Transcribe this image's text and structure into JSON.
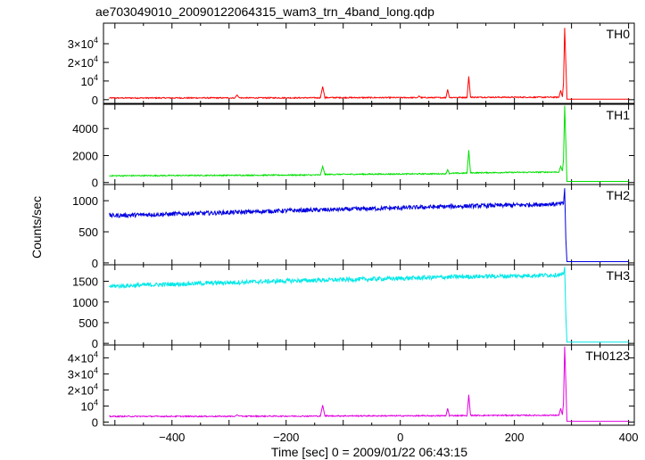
{
  "chart_data": {
    "type": "line",
    "title": "ae703049010_20090122064315_wam3_trn_4band_long.qdp",
    "xlabel": "Time [sec] 0 = 2009/01/22 06:43:15",
    "ylabel": "Counts/sec",
    "xlim": [
      -520,
      410
    ],
    "x_ticks": [
      -400,
      -200,
      0,
      200,
      400
    ],
    "grid": false,
    "panels": [
      {
        "name": "TH0",
        "color": "#ff0000",
        "ylim": [
          -2000,
          41000
        ],
        "y_ticks": [
          {
            "value": 0,
            "mantissa": "0",
            "exp": ""
          },
          {
            "value": 10000,
            "mantissa": "10",
            "exp": "4"
          },
          {
            "value": 20000,
            "mantissa": "2×10",
            "exp": "4"
          },
          {
            "value": 30000,
            "mantissa": "3×10",
            "exp": "4"
          }
        ],
        "series": [
          {
            "x": -510,
            "y": 900
          },
          {
            "x": -290,
            "y": 950
          },
          {
            "x": -286,
            "y": 2500
          },
          {
            "x": -282,
            "y": 950
          },
          {
            "x": -140,
            "y": 1000
          },
          {
            "x": -136,
            "y": 7000
          },
          {
            "x": -132,
            "y": 1100
          },
          {
            "x": 30,
            "y": 1100
          },
          {
            "x": 33,
            "y": 2000
          },
          {
            "x": 36,
            "y": 1100
          },
          {
            "x": 80,
            "y": 1100
          },
          {
            "x": 83,
            "y": 5500
          },
          {
            "x": 86,
            "y": 1200
          },
          {
            "x": 117,
            "y": 1200
          },
          {
            "x": 120,
            "y": 12500
          },
          {
            "x": 123,
            "y": 1300
          },
          {
            "x": 278,
            "y": 1300
          },
          {
            "x": 281,
            "y": 5000
          },
          {
            "x": 284,
            "y": 1500
          },
          {
            "x": 286,
            "y": 9000
          },
          {
            "x": 288,
            "y": 38500
          },
          {
            "x": 290,
            "y": 20000
          },
          {
            "x": 292,
            "y": 300
          },
          {
            "x": 400,
            "y": 300
          }
        ]
      },
      {
        "name": "TH1",
        "color": "#00e000",
        "ylim": [
          -150,
          5800
        ],
        "y_ticks": [
          {
            "value": 0,
            "mantissa": "0",
            "exp": ""
          },
          {
            "value": 2000,
            "mantissa": "2000",
            "exp": ""
          },
          {
            "value": 4000,
            "mantissa": "4000",
            "exp": ""
          }
        ],
        "series": [
          {
            "x": -510,
            "y": 500
          },
          {
            "x": -140,
            "y": 560
          },
          {
            "x": -136,
            "y": 1200
          },
          {
            "x": -132,
            "y": 600
          },
          {
            "x": 80,
            "y": 650
          },
          {
            "x": 83,
            "y": 950
          },
          {
            "x": 86,
            "y": 680
          },
          {
            "x": 117,
            "y": 700
          },
          {
            "x": 120,
            "y": 2400
          },
          {
            "x": 123,
            "y": 720
          },
          {
            "x": 278,
            "y": 780
          },
          {
            "x": 281,
            "y": 1200
          },
          {
            "x": 284,
            "y": 850
          },
          {
            "x": 286,
            "y": 1700
          },
          {
            "x": 288,
            "y": 5700
          },
          {
            "x": 290,
            "y": 3000
          },
          {
            "x": 292,
            "y": 80
          },
          {
            "x": 400,
            "y": 80
          }
        ]
      },
      {
        "name": "TH2",
        "color": "#0000e0",
        "ylim": [
          -30,
          1260
        ],
        "y_ticks": [
          {
            "value": 0,
            "mantissa": "0",
            "exp": ""
          },
          {
            "value": 500,
            "mantissa": "500",
            "exp": ""
          },
          {
            "value": 1000,
            "mantissa": "1000",
            "exp": ""
          }
        ],
        "series": [
          {
            "x": -510,
            "y": 760
          },
          {
            "x": -400,
            "y": 785
          },
          {
            "x": -300,
            "y": 810
          },
          {
            "x": -200,
            "y": 840
          },
          {
            "x": -100,
            "y": 860
          },
          {
            "x": 0,
            "y": 885
          },
          {
            "x": 100,
            "y": 910
          },
          {
            "x": 200,
            "y": 930
          },
          {
            "x": 286,
            "y": 950
          },
          {
            "x": 288,
            "y": 1200
          },
          {
            "x": 290,
            "y": 400
          },
          {
            "x": 292,
            "y": 20
          },
          {
            "x": 400,
            "y": 20
          }
        ]
      },
      {
        "name": "TH3",
        "color": "#00e8e8",
        "ylim": [
          -40,
          1900
        ],
        "y_ticks": [
          {
            "value": 0,
            "mantissa": "0",
            "exp": ""
          },
          {
            "value": 500,
            "mantissa": "500",
            "exp": ""
          },
          {
            "value": 1000,
            "mantissa": "1000",
            "exp": ""
          },
          {
            "value": 1500,
            "mantissa": "1500",
            "exp": ""
          }
        ],
        "series": [
          {
            "x": -510,
            "y": 1380
          },
          {
            "x": -400,
            "y": 1430
          },
          {
            "x": -300,
            "y": 1470
          },
          {
            "x": -200,
            "y": 1510
          },
          {
            "x": -100,
            "y": 1540
          },
          {
            "x": 0,
            "y": 1570
          },
          {
            "x": 100,
            "y": 1610
          },
          {
            "x": 200,
            "y": 1630
          },
          {
            "x": 286,
            "y": 1660
          },
          {
            "x": 288,
            "y": 1850
          },
          {
            "x": 290,
            "y": 700
          },
          {
            "x": 292,
            "y": 30
          },
          {
            "x": 400,
            "y": 30
          }
        ]
      },
      {
        "name": "TH0123",
        "color": "#e000e0",
        "ylim": [
          -2000,
          48000
        ],
        "y_ticks": [
          {
            "value": 0,
            "mantissa": "0",
            "exp": ""
          },
          {
            "value": 10000,
            "mantissa": "10",
            "exp": "4"
          },
          {
            "value": 20000,
            "mantissa": "2×10",
            "exp": "4"
          },
          {
            "value": 30000,
            "mantissa": "3×10",
            "exp": "4"
          },
          {
            "value": 40000,
            "mantissa": "4×10",
            "exp": "4"
          }
        ],
        "series": [
          {
            "x": -510,
            "y": 3500
          },
          {
            "x": -290,
            "y": 3550
          },
          {
            "x": -286,
            "y": 4500
          },
          {
            "x": -282,
            "y": 3600
          },
          {
            "x": -140,
            "y": 3700
          },
          {
            "x": -136,
            "y": 10500
          },
          {
            "x": -132,
            "y": 3800
          },
          {
            "x": 80,
            "y": 3900
          },
          {
            "x": 83,
            "y": 8500
          },
          {
            "x": 86,
            "y": 4000
          },
          {
            "x": 117,
            "y": 4000
          },
          {
            "x": 120,
            "y": 17000
          },
          {
            "x": 123,
            "y": 4100
          },
          {
            "x": 278,
            "y": 4200
          },
          {
            "x": 281,
            "y": 8500
          },
          {
            "x": 284,
            "y": 4500
          },
          {
            "x": 286,
            "y": 12000
          },
          {
            "x": 288,
            "y": 47000
          },
          {
            "x": 290,
            "y": 25000
          },
          {
            "x": 292,
            "y": 400
          },
          {
            "x": 400,
            "y": 400
          }
        ]
      }
    ]
  }
}
